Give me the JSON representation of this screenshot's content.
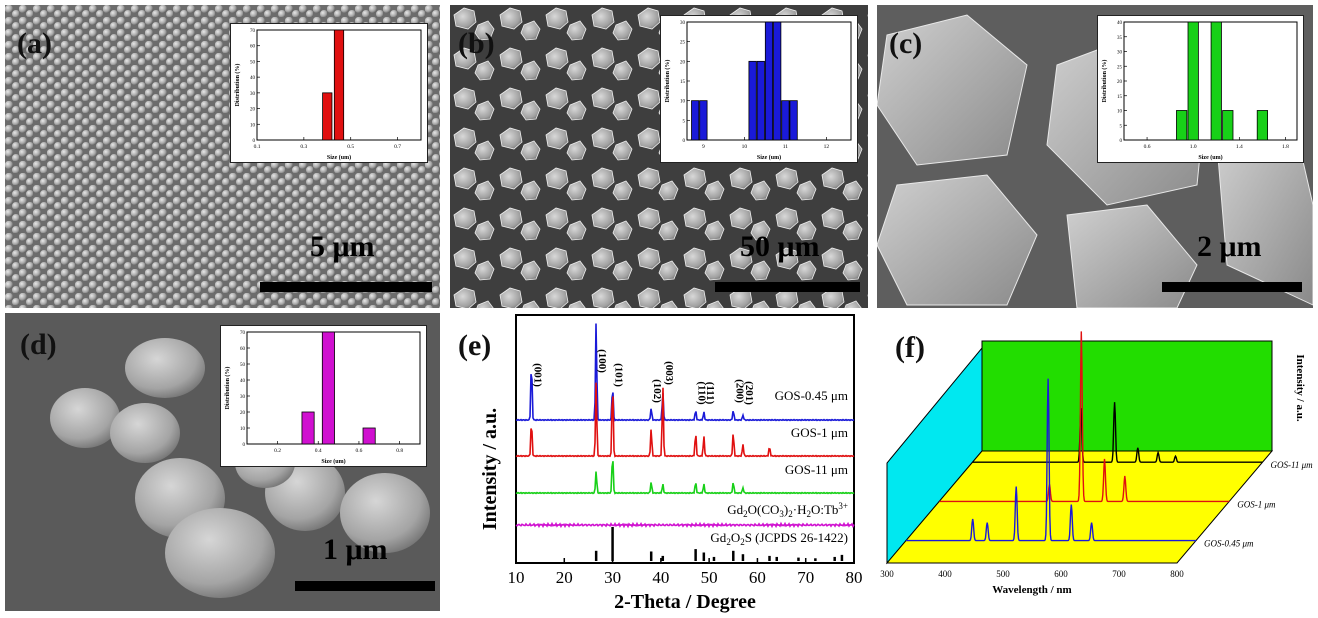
{
  "panels": {
    "a": {
      "label": "(a)",
      "scale": "5 μm"
    },
    "b": {
      "label": "(b)",
      "scale": "50 μm"
    },
    "c": {
      "label": "(c)",
      "scale": "2 μm"
    },
    "d": {
      "label": "(d)",
      "scale": "1 μm"
    },
    "e": {
      "label": "(e)"
    },
    "f": {
      "label": "(f)"
    }
  },
  "colors": {
    "red": "#e01010",
    "blue": "#1a1ad8",
    "green": "#18d018",
    "magenta": "#d010d0",
    "black": "#000000",
    "cyan": "#00e8f0",
    "yellow": "#ffff00",
    "lime": "#22dd00"
  },
  "chart_data": [
    {
      "id": "inset-a",
      "type": "bar",
      "color": "red",
      "xlabel": "Size (um)",
      "ylabel": "Distribution (%)",
      "xticks": [
        "0.1",
        "0.3",
        "0.5",
        "0.7"
      ],
      "xlim": [
        0.1,
        0.8
      ],
      "ylim": [
        0,
        70
      ],
      "yticks": [
        "0",
        "10",
        "20",
        "30",
        "40",
        "50",
        "60",
        "70"
      ],
      "x": [
        0.4,
        0.45
      ],
      "values": [
        30,
        70
      ],
      "bar_width": 0.04
    },
    {
      "id": "inset-b",
      "type": "bar",
      "color": "blue",
      "xlabel": "Size (um)",
      "ylabel": "Distribution (%)",
      "xticks": [
        "9",
        "10",
        "11",
        "12"
      ],
      "xlim": [
        8.6,
        12.6
      ],
      "ylim": [
        0,
        30
      ],
      "yticks": [
        "0",
        "5",
        "10",
        "15",
        "20",
        "25",
        "30"
      ],
      "x": [
        8.8,
        9.0,
        10.2,
        10.4,
        10.6,
        10.8,
        11.0,
        11.2
      ],
      "values": [
        10,
        10,
        20,
        20,
        30,
        30,
        10,
        10
      ],
      "bar_width": 0.18
    },
    {
      "id": "inset-c",
      "type": "bar",
      "color": "green",
      "xlabel": "Size (um)",
      "ylabel": "Distribution (%)",
      "xticks": [
        "0.6",
        "1.0",
        "1.4",
        "1.8"
      ],
      "xlim": [
        0.4,
        1.9
      ],
      "ylim": [
        0,
        40
      ],
      "yticks": [
        "0",
        "5",
        "10",
        "15",
        "20",
        "25",
        "30",
        "35",
        "40"
      ],
      "x": [
        0.9,
        1.0,
        1.2,
        1.3,
        1.5,
        1.6
      ],
      "values": [
        10,
        40,
        40,
        10,
        0,
        10
      ],
      "bar_width": 0.09
    },
    {
      "id": "inset-d",
      "type": "bar",
      "color": "magenta",
      "xlabel": "Size (um)",
      "ylabel": "Distribution (%)",
      "xticks": [
        "0.2",
        "0.4",
        "0.6",
        "0.8"
      ],
      "xlim": [
        0.05,
        0.9
      ],
      "ylim": [
        0,
        70
      ],
      "yticks": [
        "0",
        "10",
        "20",
        "30",
        "40",
        "50",
        "60",
        "70"
      ],
      "x": [
        0.35,
        0.45,
        0.65
      ],
      "values": [
        20,
        70,
        10
      ],
      "bar_width": 0.06
    },
    {
      "id": "xrd",
      "type": "line",
      "xlabel": "2-Theta / Degree",
      "ylabel": "Intensity / a.u.",
      "xlim": [
        10,
        80
      ],
      "xticks": [
        "10",
        "20",
        "30",
        "40",
        "50",
        "60",
        "70",
        "80"
      ],
      "series": [
        {
          "name": "GOS-0.45 μm",
          "color": "blue",
          "peaks": [
            [
              13.2,
              0.6
            ],
            [
              26.6,
              1.0
            ],
            [
              30.0,
              0.35
            ],
            [
              38.0,
              0.12
            ],
            [
              40.4,
              0.28
            ],
            [
              47.2,
              0.1
            ],
            [
              48.9,
              0.08
            ],
            [
              55.0,
              0.1
            ],
            [
              57.0,
              0.05
            ]
          ]
        },
        {
          "name": "GOS-1 μm",
          "color": "red",
          "peaks": [
            [
              13.2,
              0.45
            ],
            [
              26.6,
              0.95
            ],
            [
              30.0,
              0.95
            ],
            [
              38.0,
              0.35
            ],
            [
              40.4,
              0.9
            ],
            [
              47.2,
              0.3
            ],
            [
              48.9,
              0.25
            ],
            [
              55.0,
              0.3
            ],
            [
              57.0,
              0.15
            ],
            [
              62.5,
              0.12
            ]
          ]
        },
        {
          "name": "GOS-11 μm",
          "color": "green",
          "peaks": [
            [
              26.6,
              0.5
            ],
            [
              30.0,
              0.9
            ],
            [
              38.0,
              0.25
            ],
            [
              40.4,
              0.2
            ],
            [
              47.2,
              0.25
            ],
            [
              48.9,
              0.2
            ],
            [
              55.0,
              0.25
            ],
            [
              57.0,
              0.12
            ]
          ]
        },
        {
          "name": "Gd",
          "color": "magenta",
          "peaks": []
        },
        {
          "name": "Gd",
          "color": "black",
          "peaks": [
            [
              26.6,
              0.3
            ],
            [
              30.0,
              1.0
            ],
            [
              38.0,
              0.28
            ],
            [
              40.4,
              0.15
            ],
            [
              47.2,
              0.35
            ],
            [
              48.9,
              0.25
            ],
            [
              51.0,
              0.12
            ],
            [
              55.0,
              0.3
            ],
            [
              57.0,
              0.2
            ],
            [
              62.5,
              0.15
            ],
            [
              64.0,
              0.12
            ],
            [
              68.5,
              0.1
            ],
            [
              72.0,
              0.08
            ],
            [
              76.0,
              0.12
            ],
            [
              77.5,
              0.18
            ]
          ]
        }
      ],
      "series_labels": {
        "s0": "GOS-0.45 μm",
        "s1": "GOS-1 μm",
        "s2": "GOS-11 μm",
        "s3_main": "Gd",
        "s3_sub1": "2",
        "s3_mid1": "O(CO",
        "s3_sub2": "3",
        "s3_sub3": "2",
        "s3_mid2": "·H",
        "s3_sub4": "2",
        "s3_mid3": "O:Tb",
        "s3_sup": "3+",
        "s4_main": "Gd",
        "s4_sub1": "2",
        "s4_mid": "O",
        "s4_sub2": "2",
        "s4_end": "S (JCPDS 26-1422)"
      },
      "peak_labels": [
        {
          "text": "(001)",
          "x": 13.2
        },
        {
          "text": "(100)",
          "x": 26.6
        },
        {
          "text": "(101)",
          "x": 30.0
        },
        {
          "text": "(102)",
          "x": 38.0
        },
        {
          "text": "(003)",
          "x": 40.4
        },
        {
          "text": "(110)",
          "x": 47.2
        },
        {
          "text": "(111)",
          "x": 48.9
        },
        {
          "text": "(200)",
          "x": 55.0
        },
        {
          "text": "(201)",
          "x": 57.0
        }
      ]
    },
    {
      "id": "pl3d",
      "type": "line",
      "xlabel": "Wavelength / nm",
      "ylabel": "Intensity / a.u.",
      "xlim": [
        300,
        800
      ],
      "xticks": [
        "300",
        "400",
        "500",
        "600",
        "700",
        "800"
      ],
      "series": [
        {
          "name": "GOS-11 μm",
          "color": "black",
          "peaks": [
            [
              487,
              0.45
            ],
            [
              545,
              0.5
            ],
            [
              585,
              0.12
            ],
            [
              620,
              0.08
            ],
            [
              650,
              0.05
            ]
          ]
        },
        {
          "name": "GOS-1 μm",
          "color": "red",
          "peaks": [
            [
              490,
              0.1
            ],
            [
              545,
              1.0
            ],
            [
              585,
              0.25
            ],
            [
              620,
              0.15
            ]
          ]
        },
        {
          "name": "GOS-0.45 μm",
          "color": "blue",
          "peaks": [
            [
              415,
              0.12
            ],
            [
              440,
              0.1
            ],
            [
              490,
              0.3
            ],
            [
              545,
              0.9
            ],
            [
              585,
              0.2
            ],
            [
              620,
              0.1
            ]
          ]
        }
      ]
    }
  ]
}
